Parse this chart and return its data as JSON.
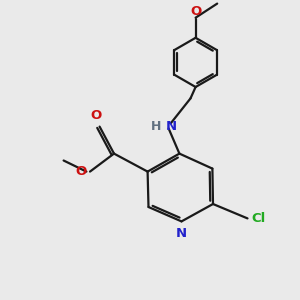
{
  "bg_color": "#eaeaea",
  "bond_color": "#1a1a1a",
  "bond_width": 1.6,
  "atom_colors": {
    "N": "#2222cc",
    "O": "#cc1111",
    "Cl": "#22aa22",
    "H": "#607080",
    "C": "#1a1a1a"
  },
  "font_size": 9.5
}
